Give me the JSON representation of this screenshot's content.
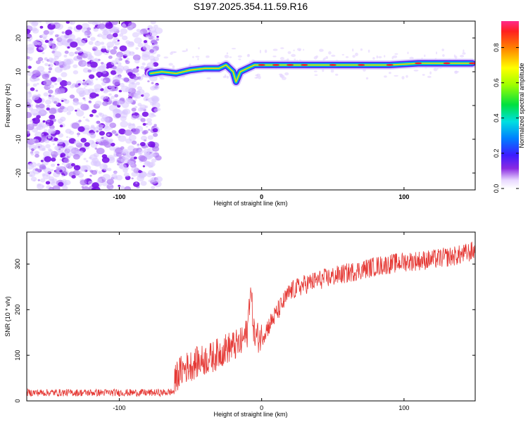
{
  "chart_data": [
    {
      "type": "heatmap",
      "title": "S197.2025.354.11.59.R16",
      "xlabel": "Height of straight line (km)",
      "ylabel": "Frequency (Hz)",
      "xlim": [
        -165,
        150
      ],
      "ylim": [
        -25,
        25
      ],
      "xticks": [
        -100,
        0,
        100
      ],
      "yticks": [
        -20,
        -10,
        0,
        10,
        20
      ],
      "noise_region_x": [
        -165,
        -75
      ],
      "ridge": {
        "x": [
          -78,
          -70,
          -60,
          -50,
          -40,
          -30,
          -25,
          -20,
          -18,
          -15,
          -10,
          -5,
          0,
          10,
          20,
          30,
          50,
          70,
          90,
          110,
          130,
          148
        ],
        "y": [
          9.5,
          10,
          9.5,
          10.5,
          11,
          11,
          12,
          10,
          7,
          10,
          11,
          12,
          12,
          12,
          12,
          12,
          12,
          12,
          12,
          12.5,
          12.5,
          12.5
        ]
      },
      "colorbar": {
        "label": "Normalized spectral amplitude",
        "ticks": [
          0.0,
          0.2,
          0.4,
          0.6,
          0.8
        ],
        "range": [
          0,
          0.95
        ]
      }
    },
    {
      "type": "line",
      "title": "",
      "xlabel": "Height of straight line (km)",
      "ylabel": "SNR (10 * v/v)",
      "xlim": [
        -165,
        150
      ],
      "ylim": [
        0,
        370
      ],
      "xticks": [
        -100,
        0,
        100
      ],
      "yticks": [
        0,
        100,
        200,
        300
      ],
      "series": [
        {
          "name": "SNR",
          "color": "#e53935",
          "x": [
            -165,
            -140,
            -100,
            -70,
            -62,
            -60,
            -55,
            -45,
            -35,
            -25,
            -15,
            -10,
            -8,
            -5,
            0,
            10,
            20,
            30,
            40,
            60,
            80,
            100,
            120,
            140,
            150
          ],
          "y": [
            18,
            18,
            18,
            18,
            20,
            55,
            70,
            85,
            95,
            115,
            125,
            150,
            250,
            140,
            140,
            190,
            240,
            255,
            265,
            280,
            295,
            305,
            310,
            320,
            330
          ]
        }
      ]
    }
  ]
}
